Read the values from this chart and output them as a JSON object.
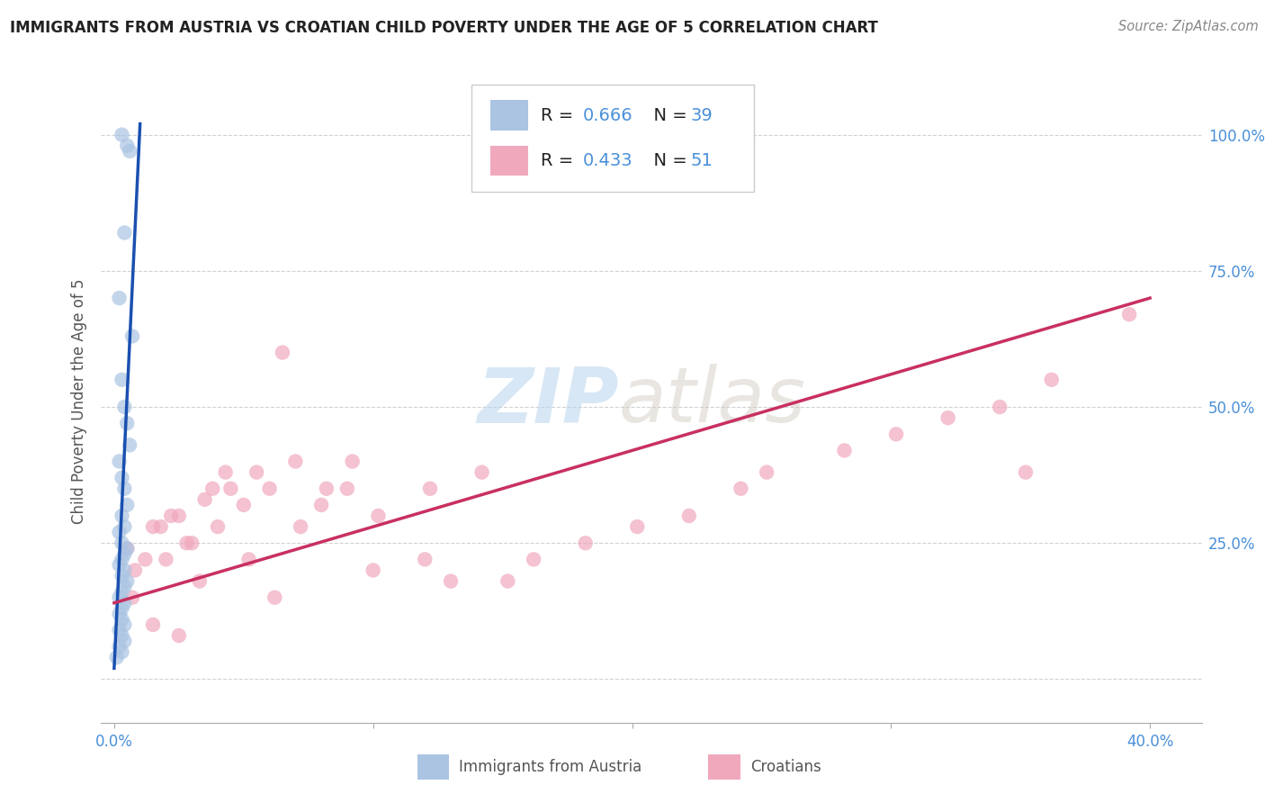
{
  "title": "IMMIGRANTS FROM AUSTRIA VS CROATIAN CHILD POVERTY UNDER THE AGE OF 5 CORRELATION CHART",
  "source": "Source: ZipAtlas.com",
  "ylabel": "Child Poverty Under the Age of 5",
  "ytick_values": [
    0.0,
    0.25,
    0.5,
    0.75,
    1.0
  ],
  "ytick_right_labels": [
    "",
    "25.0%",
    "50.0%",
    "75.0%",
    "100.0%"
  ],
  "xmin": -0.005,
  "xmax": 0.42,
  "ymin": -0.08,
  "ymax": 1.1,
  "watermark_zip": "ZIP",
  "watermark_atlas": "atlas",
  "legend_austria_R": "0.666",
  "legend_austria_N": "39",
  "legend_croatian_R": "0.433",
  "legend_croatian_N": "51",
  "austria_color": "#aac4e2",
  "austria_line_color": "#1a50b0",
  "croatian_color": "#f0a8bc",
  "croatian_line_color": "#c83060",
  "austria_points_x": [
    0.003,
    0.005,
    0.006,
    0.004,
    0.002,
    0.007,
    0.003,
    0.004,
    0.005,
    0.006,
    0.002,
    0.003,
    0.004,
    0.005,
    0.003,
    0.004,
    0.002,
    0.003,
    0.005,
    0.004,
    0.003,
    0.002,
    0.004,
    0.003,
    0.005,
    0.004,
    0.003,
    0.002,
    0.004,
    0.003,
    0.002,
    0.003,
    0.004,
    0.002,
    0.003,
    0.004,
    0.002,
    0.003,
    0.001
  ],
  "austria_points_y": [
    1.0,
    0.98,
    0.97,
    0.82,
    0.7,
    0.63,
    0.55,
    0.5,
    0.47,
    0.43,
    0.4,
    0.37,
    0.35,
    0.32,
    0.3,
    0.28,
    0.27,
    0.25,
    0.24,
    0.23,
    0.22,
    0.21,
    0.2,
    0.19,
    0.18,
    0.17,
    0.16,
    0.15,
    0.14,
    0.13,
    0.12,
    0.11,
    0.1,
    0.09,
    0.08,
    0.07,
    0.06,
    0.05,
    0.04
  ],
  "croatian_points_x": [
    0.005,
    0.015,
    0.02,
    0.025,
    0.03,
    0.035,
    0.04,
    0.045,
    0.05,
    0.055,
    0.06,
    0.065,
    0.07,
    0.08,
    0.09,
    0.1,
    0.12,
    0.13,
    0.008,
    0.012,
    0.018,
    0.022,
    0.028,
    0.033,
    0.038,
    0.043,
    0.052,
    0.062,
    0.072,
    0.082,
    0.092,
    0.102,
    0.122,
    0.142,
    0.152,
    0.162,
    0.182,
    0.202,
    0.222,
    0.242,
    0.252,
    0.282,
    0.302,
    0.322,
    0.342,
    0.362,
    0.352,
    0.392,
    0.007,
    0.015,
    0.025
  ],
  "croatian_points_y": [
    0.24,
    0.28,
    0.22,
    0.3,
    0.25,
    0.33,
    0.28,
    0.35,
    0.32,
    0.38,
    0.35,
    0.6,
    0.4,
    0.32,
    0.35,
    0.2,
    0.22,
    0.18,
    0.2,
    0.22,
    0.28,
    0.3,
    0.25,
    0.18,
    0.35,
    0.38,
    0.22,
    0.15,
    0.28,
    0.35,
    0.4,
    0.3,
    0.35,
    0.38,
    0.18,
    0.22,
    0.25,
    0.28,
    0.3,
    0.35,
    0.38,
    0.42,
    0.45,
    0.48,
    0.5,
    0.55,
    0.38,
    0.67,
    0.15,
    0.1,
    0.08
  ],
  "austria_trend_x": [
    0.0,
    0.01
  ],
  "austria_trend_y": [
    0.02,
    1.02
  ],
  "croatian_trend_x": [
    0.0,
    0.4
  ],
  "croatian_trend_y": [
    0.14,
    0.7
  ],
  "background_color": "#ffffff",
  "grid_color": "#cccccc",
  "title_color": "#222222",
  "axis_label_color": "#555555",
  "right_axis_color": "#4a90d9",
  "legend_text_color": "#222222",
  "legend_value_color": "#4a90d9"
}
